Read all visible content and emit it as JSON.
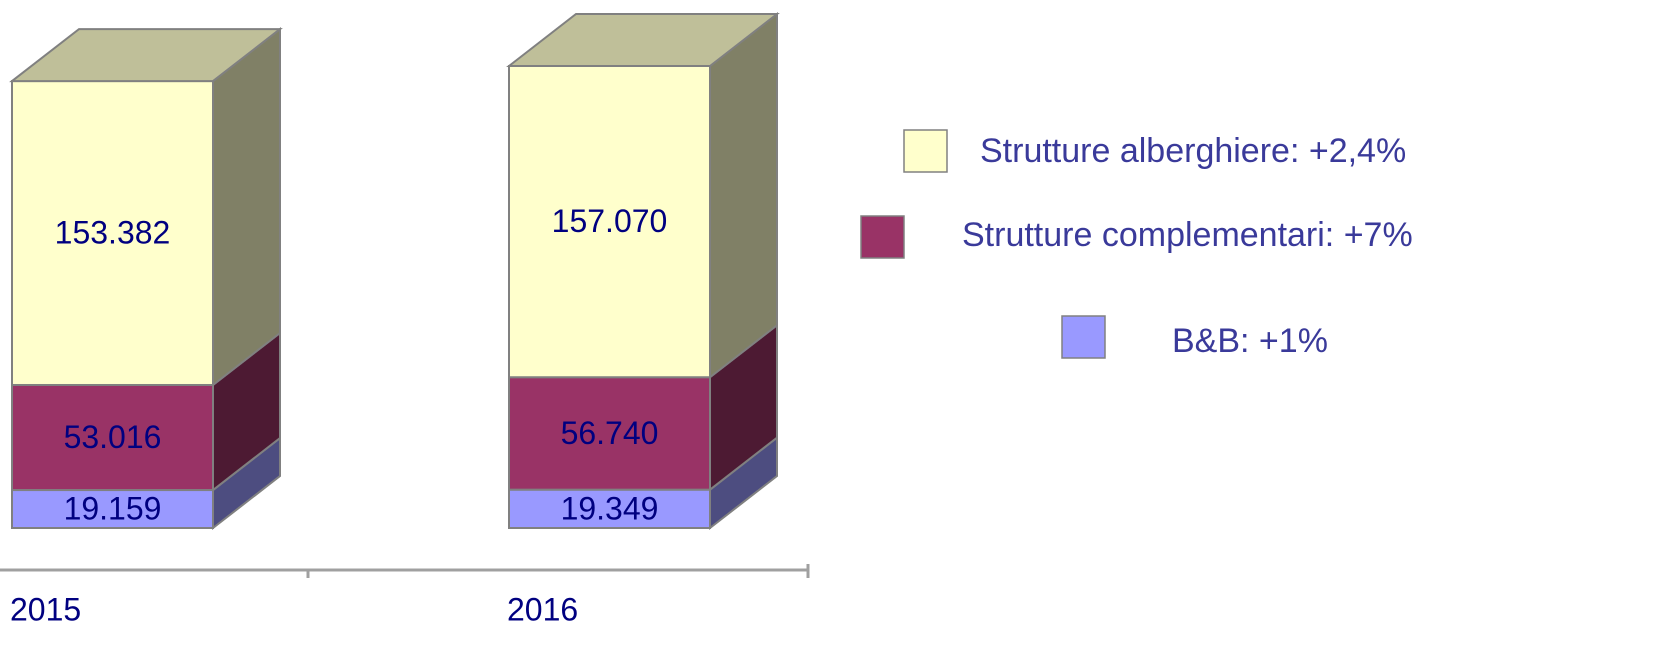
{
  "chart_data": {
    "type": "bar3d_stacked",
    "categories": [
      "2015",
      "2016"
    ],
    "series": [
      {
        "name": "B&B: +1%",
        "color": "#9999ff",
        "values": [
          19159,
          19349
        ],
        "value_labels": [
          "19.159",
          "19.349"
        ]
      },
      {
        "name": "Strutture complementari: +7%",
        "color": "#993366",
        "values": [
          53016,
          56740
        ],
        "value_labels": [
          "53.016",
          "56.740"
        ]
      },
      {
        "name": "Strutture alberghiere: +2,4%",
        "color": "#ffffcc",
        "values": [
          153382,
          157070
        ],
        "value_labels": [
          "153.382",
          "157.070"
        ]
      }
    ]
  }
}
